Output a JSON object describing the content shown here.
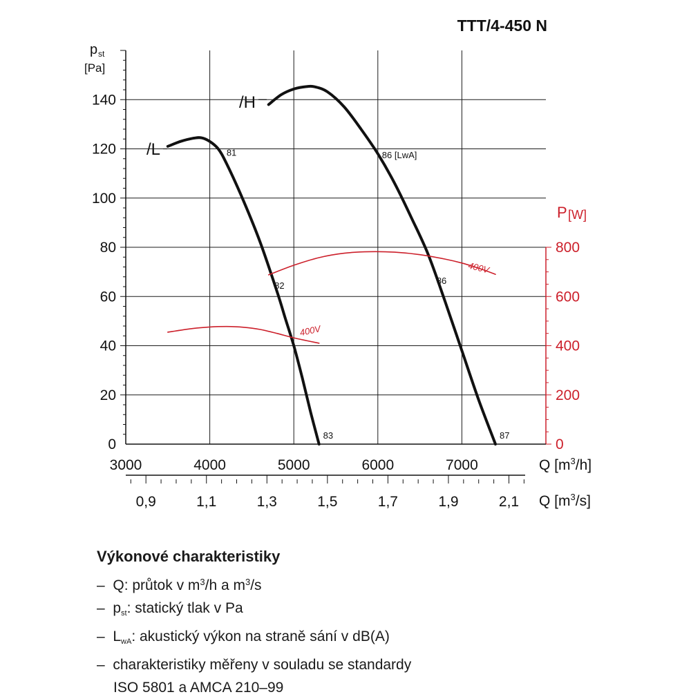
{
  "header": {
    "model": "TTT/4-450 N"
  },
  "chart_data": {
    "type": "line",
    "title": "TTT/4-450 N",
    "x_axis": {
      "label_prefix": "Q [m",
      "label_sup": "3",
      "label_suffix": "/h]",
      "range": [
        3000,
        8000
      ],
      "tick_values": [
        3000,
        4000,
        5000,
        6000,
        7000
      ],
      "tick_labels": [
        "3000",
        "4000",
        "5000",
        "6000",
        "7000"
      ]
    },
    "x2_axis": {
      "label_prefix": "Q [m",
      "label_sup": "3",
      "label_suffix": "/s]",
      "tick_values": [
        0.9,
        1.1,
        1.3,
        1.5,
        1.7,
        1.9,
        2.1
      ],
      "tick_labels": [
        "0,9",
        "1,1",
        "1,3",
        "1,5",
        "1,7",
        "1,9",
        "2,1"
      ]
    },
    "y_axis": {
      "label_main": "p",
      "label_sub": "st",
      "label_unit": "[Pa]",
      "range": [
        0,
        160
      ],
      "tick_values": [
        0,
        20,
        40,
        60,
        80,
        100,
        120,
        140
      ],
      "tick_labels": [
        "0",
        "20",
        "40",
        "60",
        "80",
        "100",
        "120",
        "140"
      ]
    },
    "y2_axis": {
      "label_main": "P",
      "label_unit": "[W]",
      "range": [
        0,
        1600
      ],
      "tick_values": [
        0,
        200,
        400,
        600,
        800
      ],
      "tick_labels": [
        "0",
        "200",
        "400",
        "600",
        "800"
      ]
    },
    "grid": true,
    "series": [
      {
        "name": "/L",
        "axis": "pressure",
        "color": "#111111",
        "x": [
          3500,
          3650,
          3800,
          3900,
          4000,
          4100,
          4200,
          4400,
          4600,
          4800,
          4900,
          5000,
          5100,
          5200,
          5300
        ],
        "y": [
          121,
          123,
          124.3,
          124.5,
          123,
          120,
          114,
          99,
          82,
          62,
          51,
          40,
          27,
          13,
          0
        ],
        "labels": [
          {
            "x": 4150,
            "y": 120,
            "text": "81"
          },
          {
            "x": 4720,
            "y": 66,
            "text": "82"
          },
          {
            "x": 5300,
            "y": 0,
            "text": "83"
          }
        ]
      },
      {
        "name": "/H",
        "axis": "pressure",
        "color": "#111111",
        "x": [
          4700,
          4850,
          5000,
          5150,
          5250,
          5400,
          5600,
          5800,
          6000,
          6200,
          6400,
          6600,
          6800,
          7000,
          7200,
          7400
        ],
        "y": [
          138,
          142,
          144.3,
          145.3,
          145.2,
          143.2,
          137,
          128,
          118,
          106,
          92,
          77,
          58,
          38,
          18,
          0
        ],
        "labels": [
          {
            "x": 6000,
            "y": 119,
            "text": "86 [LwA]"
          },
          {
            "x": 6650,
            "y": 68,
            "text": "86"
          },
          {
            "x": 7400,
            "y": 0,
            "text": "87"
          }
        ]
      },
      {
        "name": "400V",
        "axis": "power",
        "color": "#cc1f2a",
        "x": [
          3500,
          3800,
          4000,
          4200,
          4400,
          4600,
          4800,
          5000,
          5300
        ],
        "y": [
          455,
          470,
          476,
          478,
          475,
          466,
          450,
          432,
          410
        ]
      },
      {
        "name": "400V",
        "axis": "power",
        "color": "#cc1f2a",
        "x": [
          4700,
          5000,
          5300,
          5600,
          5900,
          6200,
          6500,
          6800,
          7000,
          7200,
          7400
        ],
        "y": [
          688,
          727,
          758,
          776,
          782,
          780,
          770,
          752,
          736,
          715,
          690
        ]
      }
    ],
    "power_labels": [
      "400V",
      "400V"
    ],
    "curve_tags": [
      "/L",
      "/H"
    ]
  },
  "legend_text": {
    "title": "Výkonové charakteristiky",
    "dash": "–",
    "line1_prefix": "Q: průtok v m",
    "line1_sup1": "3",
    "line1_mid": "/h a m",
    "line1_sup2": "3",
    "line1_suffix": "/s",
    "line2_main": "p",
    "line2_sub": "st",
    "line2_rest": ": statický tlak v Pa",
    "line3_main": "L",
    "line3_sub": "wA",
    "line3_rest": ": akustický výkon na straně sání v dB(A)",
    "line4": "charakteristiky měřeny v souladu se standardy",
    "line5": "ISO 5801 a AMCA 210–99"
  },
  "colors": {
    "axis": "#111111",
    "grid": "#1a1a1a",
    "power": "#cc1f2a"
  }
}
